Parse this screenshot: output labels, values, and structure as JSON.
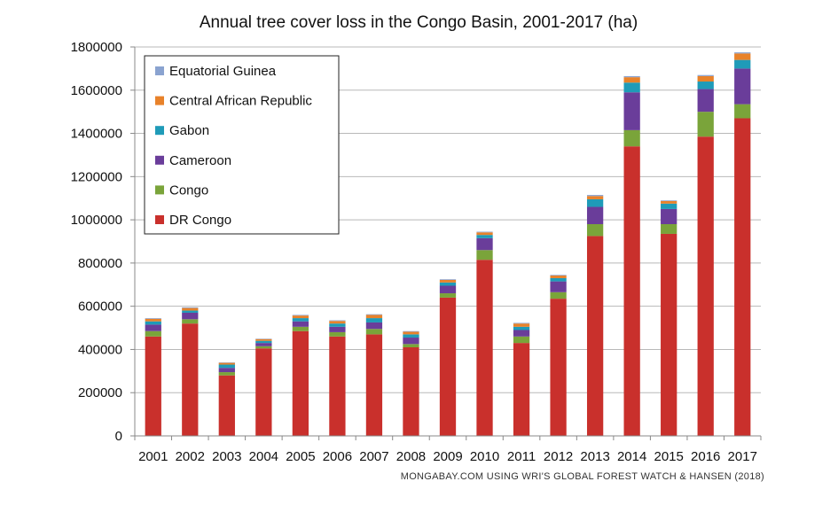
{
  "chart_data": {
    "type": "bar",
    "stacked": true,
    "title": "Annual tree cover loss in the Congo Basin, 2001-2017 (ha)",
    "source": "MONGABAY.COM USING WRI'S GLOBAL FOREST WATCH & HANSEN (2018)",
    "xlabel": "",
    "ylabel": "",
    "ylim": [
      0,
      1800000
    ],
    "yticks": [
      0,
      200000,
      400000,
      600000,
      800000,
      1000000,
      1200000,
      1400000,
      1600000,
      1800000
    ],
    "grid": true,
    "legend_position": "top-left",
    "categories": [
      "2001",
      "2002",
      "2003",
      "2004",
      "2005",
      "2006",
      "2007",
      "2008",
      "2009",
      "2010",
      "2011",
      "2012",
      "2013",
      "2014",
      "2015",
      "2016",
      "2017"
    ],
    "series": [
      {
        "name": "DR Congo",
        "color": "#c9302c",
        "values": [
          460000,
          520000,
          280000,
          405000,
          485000,
          460000,
          470000,
          410000,
          640000,
          815000,
          430000,
          635000,
          925000,
          1340000,
          935000,
          1385000,
          1470000
        ]
      },
      {
        "name": "Congo",
        "color": "#7aa43a",
        "values": [
          25000,
          20000,
          15000,
          10000,
          20000,
          20000,
          25000,
          15000,
          20000,
          45000,
          30000,
          30000,
          55000,
          75000,
          45000,
          115000,
          65000
        ]
      },
      {
        "name": "Cameroon",
        "color": "#6a3d9a",
        "values": [
          30000,
          30000,
          20000,
          15000,
          25000,
          25000,
          30000,
          30000,
          35000,
          55000,
          30000,
          50000,
          80000,
          175000,
          70000,
          105000,
          165000
        ]
      },
      {
        "name": "Gabon",
        "color": "#1f9bb8",
        "values": [
          15000,
          10000,
          15000,
          10000,
          15000,
          15000,
          20000,
          15000,
          15000,
          15000,
          15000,
          15000,
          35000,
          45000,
          25000,
          35000,
          40000
        ]
      },
      {
        "name": "Central African Republic",
        "color": "#e8822a",
        "values": [
          12000,
          12000,
          8000,
          8000,
          12000,
          12000,
          15000,
          12000,
          12000,
          12000,
          15000,
          12000,
          15000,
          25000,
          12000,
          25000,
          30000
        ]
      },
      {
        "name": "Equatorial Guinea",
        "color": "#8aa3d0",
        "values": [
          3000,
          3000,
          2000,
          2000,
          3000,
          3000,
          3000,
          3000,
          3000,
          3000,
          3000,
          3000,
          5000,
          5000,
          3000,
          5000,
          5000
        ]
      }
    ],
    "legend_order": [
      "Equatorial Guinea",
      "Central African Republic",
      "Gabon",
      "Cameroon",
      "Congo",
      "DR Congo"
    ]
  }
}
